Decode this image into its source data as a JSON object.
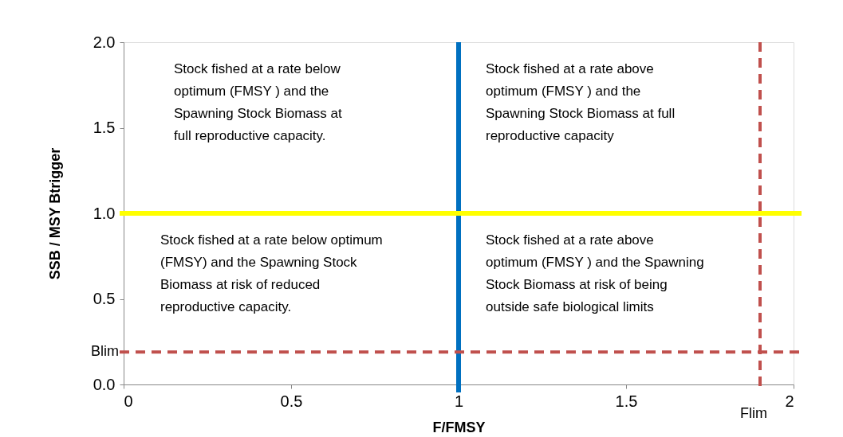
{
  "chart_data": {
    "type": "scatter",
    "xlabel": "F/FMSY",
    "ylabel": "SSB / MSY Btrigger",
    "xlim": [
      0,
      2
    ],
    "xticks": [
      0,
      0.5,
      1,
      1.5,
      2
    ],
    "ylim": [
      0,
      2
    ],
    "yticks": [
      {
        "value": 0,
        "label": "0.0"
      },
      {
        "value": 0.5,
        "label": "0.5"
      },
      {
        "value": 1,
        "label": "1.0"
      },
      {
        "value": 1.5,
        "label": "1.5"
      },
      {
        "value": 2,
        "label": "2.0"
      }
    ],
    "ref_lines": [
      {
        "axis": "x",
        "value": 1,
        "color": "#0070c0",
        "line_style": "solid"
      },
      {
        "axis": "y",
        "value": 1,
        "color": "#ffff00",
        "line_style": "solid"
      },
      {
        "axis": "y",
        "value": 0.19,
        "label": "Blim",
        "color": "#c0504d",
        "line_style": "dashed"
      },
      {
        "axis": "x",
        "value": 1.9,
        "label": "Flim",
        "color": "#c0504d",
        "line_style": "dashed"
      }
    ],
    "annotations": [
      "Stock fished at a rate below\noptimum (FMSY ) and the\nSpawning Stock Biomass at\nfull reproductive capacity.",
      "Stock fished at a rate above\noptimum (FMSY ) and the\nSpawning Stock Biomass at full\nreproductive capacity",
      "Stock fished at a rate below optimum\n(FMSY) and the Spawning Stock\nBiomass at risk of reduced\nreproductive capacity.",
      "Stock fished at a rate above\noptimum (FMSY ) and the Spawning\nStock Biomass at risk of being\noutside safe biological limits"
    ]
  }
}
